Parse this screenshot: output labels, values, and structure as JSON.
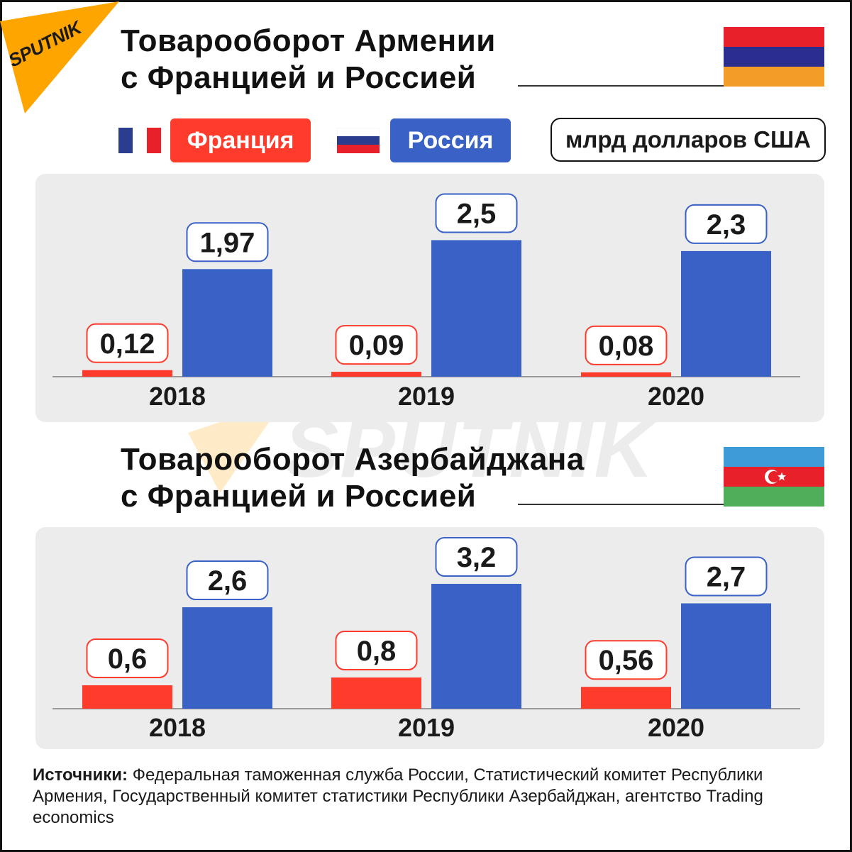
{
  "logo_text": "SPUTNIK",
  "watermark_text": "SPUTNIK",
  "colors": {
    "france": "#ff3b2c",
    "russia": "#3a62c6",
    "panel": "#ececec",
    "logo": "#ffa500"
  },
  "legend": {
    "france_label": "Франция",
    "russia_label": "Россия",
    "unit_label": "млрд долларов США"
  },
  "sources": {
    "label": "Источники:",
    "text": " Федеральная таможенная служба России, Статистический комитет Республики Армения, Государственный комитет статистики Республики Азербайджан, агентство Trading economics"
  },
  "chart_data": [
    {
      "type": "bar",
      "title_line1": "Товарооборот Армении",
      "title_line2": "с Францией и Россией",
      "unit": "млрд долларов США",
      "categories": [
        "2018",
        "2019",
        "2020"
      ],
      "series": [
        {
          "name": "Франция",
          "values": [
            0.12,
            0.09,
            0.08
          ],
          "labels": [
            "0,12",
            "0,09",
            "0,08"
          ]
        },
        {
          "name": "Россия",
          "values": [
            1.97,
            2.5,
            2.3
          ],
          "labels": [
            "1,97",
            "2,5",
            "2,3"
          ]
        }
      ],
      "flag": "armenia"
    },
    {
      "type": "bar",
      "title_line1": "Товарооборот Азербайджана",
      "title_line2": "с Францией и Россией",
      "unit": "млрд долларов США",
      "categories": [
        "2018",
        "2019",
        "2020"
      ],
      "series": [
        {
          "name": "Франция",
          "values": [
            0.6,
            0.8,
            0.56
          ],
          "labels": [
            "0,6",
            "0,8",
            "0,56"
          ]
        },
        {
          "name": "Россия",
          "values": [
            2.6,
            3.2,
            2.7
          ],
          "labels": [
            "2,6",
            "3,2",
            "2,7"
          ]
        }
      ],
      "flag": "azerbaijan"
    }
  ]
}
